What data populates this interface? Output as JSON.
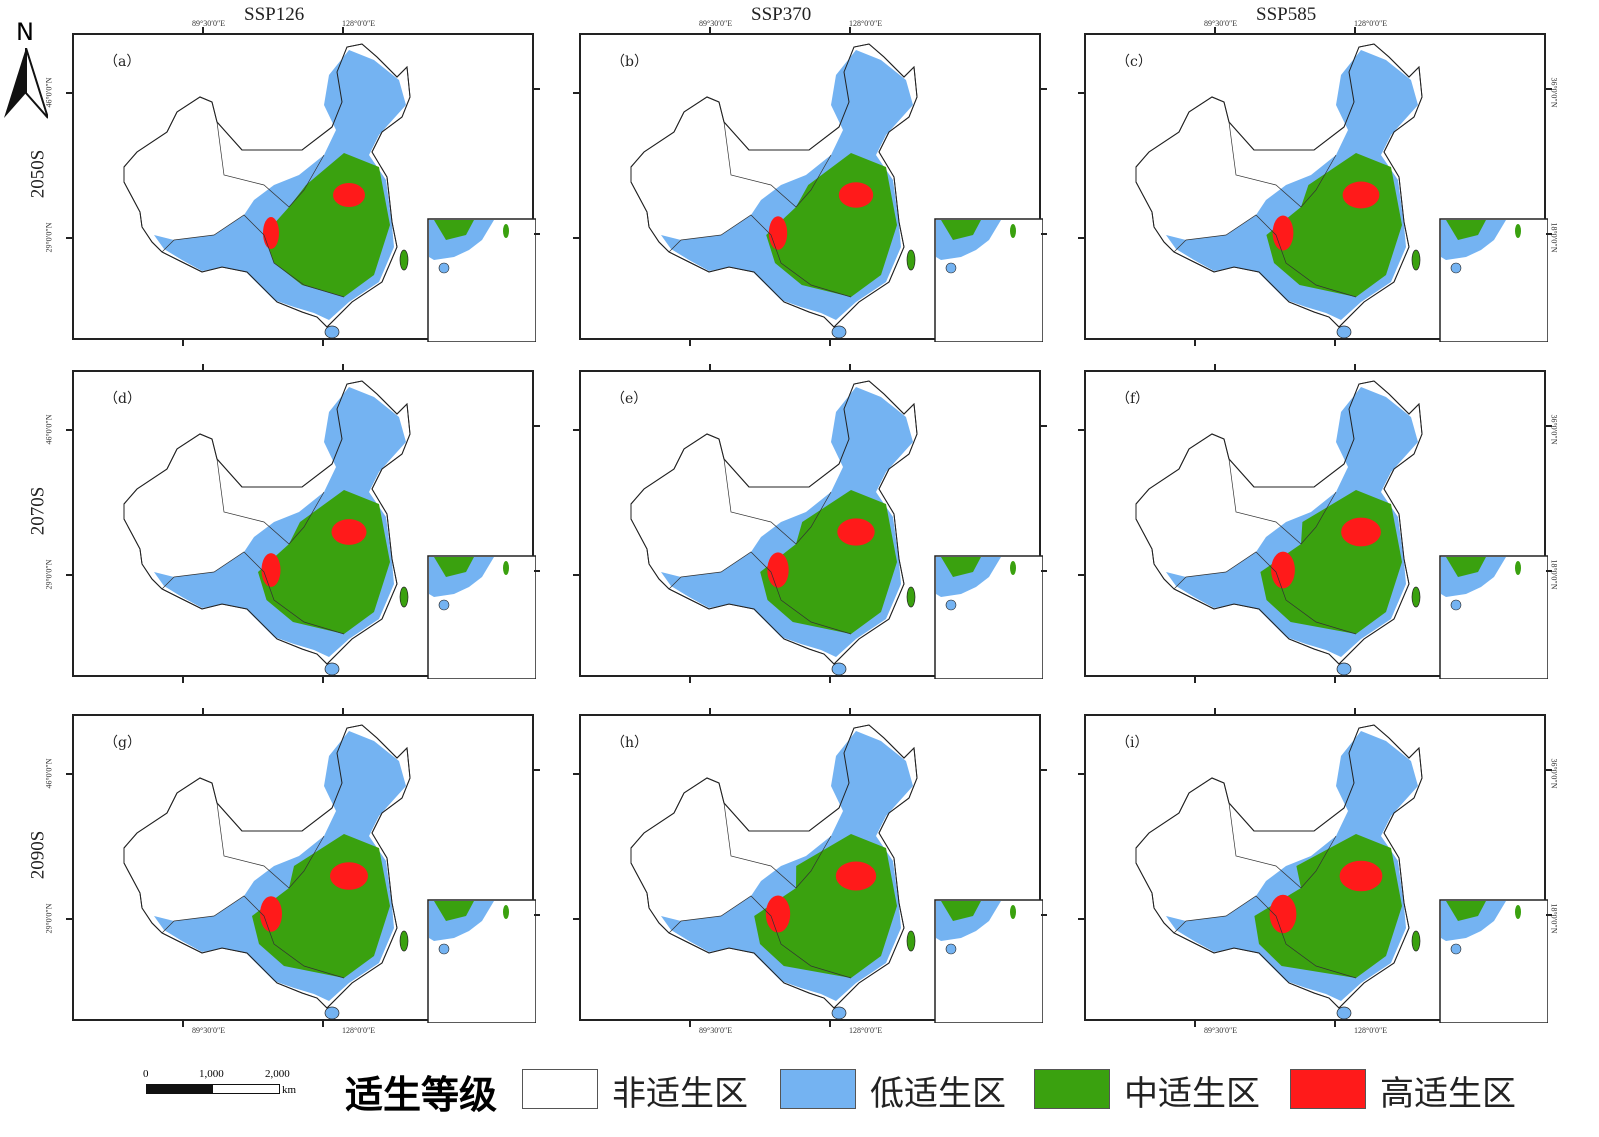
{
  "north_arrow": {
    "label": "N"
  },
  "columns": [
    "SSP126",
    "SSP370",
    "SSP585"
  ],
  "rows": [
    "2050S",
    "2070S",
    "2090S"
  ],
  "panel_labels": [
    "（a）",
    "（b）",
    "（c）",
    "（d）",
    "（e）",
    "（f）",
    "（g）",
    "（h）",
    "（i）"
  ],
  "axis_ticks": {
    "lon": [
      "89°30′0″E",
      "128°0′0″E"
    ],
    "lat_left": [
      "46°0′0″N",
      "29°0′0″N"
    ],
    "lat_right": [
      "36°0′0″N",
      "18°0′0″N"
    ]
  },
  "scale_bar": {
    "ticks": [
      "0",
      "1,000",
      "2,000"
    ],
    "unit": "km"
  },
  "legend": {
    "title": "适生等级",
    "items": [
      {
        "label": "非适生区",
        "color": "#ffffff"
      },
      {
        "label": "低适生区",
        "color": "#74b3f2"
      },
      {
        "label": "中适生区",
        "color": "#3aa10f"
      },
      {
        "label": "高适生区",
        "color": "#ff1a1a"
      }
    ]
  }
}
